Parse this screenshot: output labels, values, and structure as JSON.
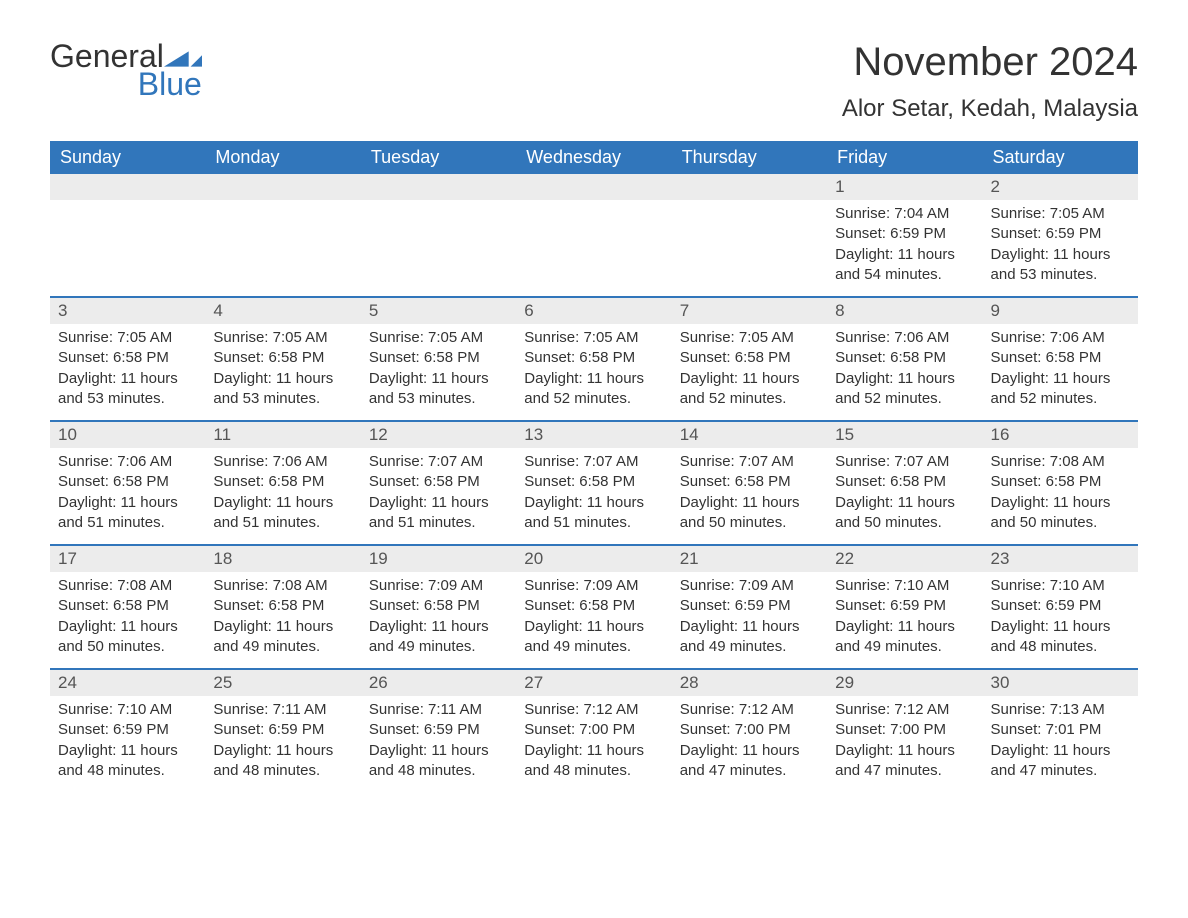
{
  "logo": {
    "text_general": "General",
    "text_blue": "Blue",
    "icon_color": "#3176bb"
  },
  "title": "November 2024",
  "location": "Alor Setar, Kedah, Malaysia",
  "colors": {
    "header_bg": "#3176bb",
    "header_text": "#ffffff",
    "daynum_bg": "#ececec",
    "body_text": "#333333",
    "week_divider": "#3176bb",
    "page_bg": "#ffffff"
  },
  "typography": {
    "title_fontsize": 40,
    "location_fontsize": 24,
    "dayheader_fontsize": 18,
    "daynum_fontsize": 17,
    "cell_fontsize": 15,
    "font_family": "Arial"
  },
  "layout": {
    "columns": 7,
    "rows": 5,
    "first_day_column_index": 5
  },
  "day_names": [
    "Sunday",
    "Monday",
    "Tuesday",
    "Wednesday",
    "Thursday",
    "Friday",
    "Saturday"
  ],
  "days": [
    {
      "n": 1,
      "sunrise": "7:04 AM",
      "sunset": "6:59 PM",
      "daylight": "11 hours and 54 minutes."
    },
    {
      "n": 2,
      "sunrise": "7:05 AM",
      "sunset": "6:59 PM",
      "daylight": "11 hours and 53 minutes."
    },
    {
      "n": 3,
      "sunrise": "7:05 AM",
      "sunset": "6:58 PM",
      "daylight": "11 hours and 53 minutes."
    },
    {
      "n": 4,
      "sunrise": "7:05 AM",
      "sunset": "6:58 PM",
      "daylight": "11 hours and 53 minutes."
    },
    {
      "n": 5,
      "sunrise": "7:05 AM",
      "sunset": "6:58 PM",
      "daylight": "11 hours and 53 minutes."
    },
    {
      "n": 6,
      "sunrise": "7:05 AM",
      "sunset": "6:58 PM",
      "daylight": "11 hours and 52 minutes."
    },
    {
      "n": 7,
      "sunrise": "7:05 AM",
      "sunset": "6:58 PM",
      "daylight": "11 hours and 52 minutes."
    },
    {
      "n": 8,
      "sunrise": "7:06 AM",
      "sunset": "6:58 PM",
      "daylight": "11 hours and 52 minutes."
    },
    {
      "n": 9,
      "sunrise": "7:06 AM",
      "sunset": "6:58 PM",
      "daylight": "11 hours and 52 minutes."
    },
    {
      "n": 10,
      "sunrise": "7:06 AM",
      "sunset": "6:58 PM",
      "daylight": "11 hours and 51 minutes."
    },
    {
      "n": 11,
      "sunrise": "7:06 AM",
      "sunset": "6:58 PM",
      "daylight": "11 hours and 51 minutes."
    },
    {
      "n": 12,
      "sunrise": "7:07 AM",
      "sunset": "6:58 PM",
      "daylight": "11 hours and 51 minutes."
    },
    {
      "n": 13,
      "sunrise": "7:07 AM",
      "sunset": "6:58 PM",
      "daylight": "11 hours and 51 minutes."
    },
    {
      "n": 14,
      "sunrise": "7:07 AM",
      "sunset": "6:58 PM",
      "daylight": "11 hours and 50 minutes."
    },
    {
      "n": 15,
      "sunrise": "7:07 AM",
      "sunset": "6:58 PM",
      "daylight": "11 hours and 50 minutes."
    },
    {
      "n": 16,
      "sunrise": "7:08 AM",
      "sunset": "6:58 PM",
      "daylight": "11 hours and 50 minutes."
    },
    {
      "n": 17,
      "sunrise": "7:08 AM",
      "sunset": "6:58 PM",
      "daylight": "11 hours and 50 minutes."
    },
    {
      "n": 18,
      "sunrise": "7:08 AM",
      "sunset": "6:58 PM",
      "daylight": "11 hours and 49 minutes."
    },
    {
      "n": 19,
      "sunrise": "7:09 AM",
      "sunset": "6:58 PM",
      "daylight": "11 hours and 49 minutes."
    },
    {
      "n": 20,
      "sunrise": "7:09 AM",
      "sunset": "6:58 PM",
      "daylight": "11 hours and 49 minutes."
    },
    {
      "n": 21,
      "sunrise": "7:09 AM",
      "sunset": "6:59 PM",
      "daylight": "11 hours and 49 minutes."
    },
    {
      "n": 22,
      "sunrise": "7:10 AM",
      "sunset": "6:59 PM",
      "daylight": "11 hours and 49 minutes."
    },
    {
      "n": 23,
      "sunrise": "7:10 AM",
      "sunset": "6:59 PM",
      "daylight": "11 hours and 48 minutes."
    },
    {
      "n": 24,
      "sunrise": "7:10 AM",
      "sunset": "6:59 PM",
      "daylight": "11 hours and 48 minutes."
    },
    {
      "n": 25,
      "sunrise": "7:11 AM",
      "sunset": "6:59 PM",
      "daylight": "11 hours and 48 minutes."
    },
    {
      "n": 26,
      "sunrise": "7:11 AM",
      "sunset": "6:59 PM",
      "daylight": "11 hours and 48 minutes."
    },
    {
      "n": 27,
      "sunrise": "7:12 AM",
      "sunset": "7:00 PM",
      "daylight": "11 hours and 48 minutes."
    },
    {
      "n": 28,
      "sunrise": "7:12 AM",
      "sunset": "7:00 PM",
      "daylight": "11 hours and 47 minutes."
    },
    {
      "n": 29,
      "sunrise": "7:12 AM",
      "sunset": "7:00 PM",
      "daylight": "11 hours and 47 minutes."
    },
    {
      "n": 30,
      "sunrise": "7:13 AM",
      "sunset": "7:01 PM",
      "daylight": "11 hours and 47 minutes."
    }
  ],
  "labels": {
    "sunrise": "Sunrise:",
    "sunset": "Sunset:",
    "daylight": "Daylight:"
  }
}
